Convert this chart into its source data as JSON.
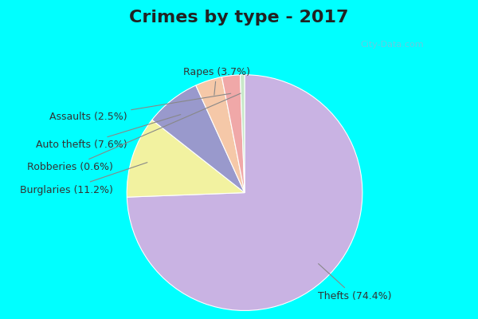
{
  "title": "Crimes by type - 2017",
  "labels": [
    "Thefts",
    "Burglaries",
    "Auto thefts",
    "Rapes",
    "Assaults",
    "Robberies"
  ],
  "values": [
    74.4,
    11.2,
    7.6,
    3.7,
    2.5,
    0.6
  ],
  "colors": [
    "#c9b3e3",
    "#f2f2a0",
    "#9999cc",
    "#f5c8a8",
    "#f0a8a8",
    "#c8e8c8"
  ],
  "label_texts": [
    "Thefts (74.4%)",
    "Burglaries (11.2%)",
    "Auto thefts (7.6%)",
    "Rapes (3.7%)",
    "Assaults (2.5%)",
    "Robberies (0.6%)"
  ],
  "title_fontsize": 16,
  "label_fontsize": 9,
  "bg_cyan": "#00ffff",
  "bg_main": "#e6f5ee",
  "title_bar_height": 0.12,
  "startangle": 90,
  "watermark": "City-Data.com"
}
